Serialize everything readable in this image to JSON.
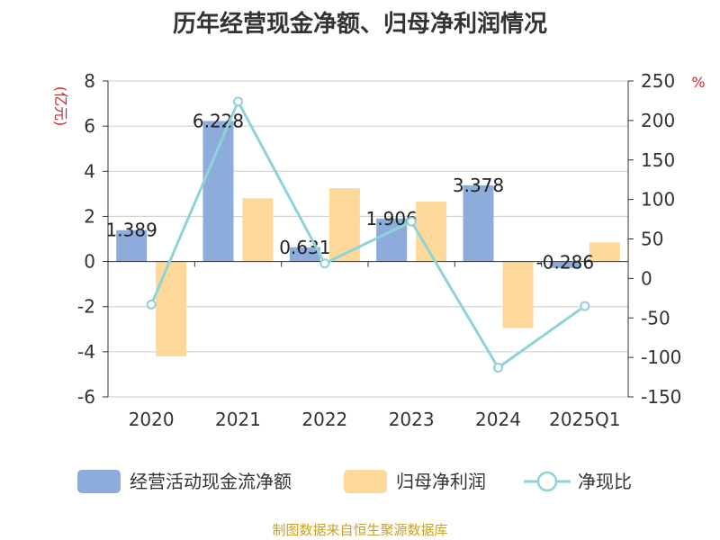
{
  "title": "历年经营现金净额、归母净利润情况",
  "source": "制图数据来自恒生聚源数据库",
  "chart_data": {
    "type": "bar+line",
    "categories": [
      "2020",
      "2021",
      "2022",
      "2023",
      "2024",
      "2025Q1"
    ],
    "left_axis": {
      "unit": "(亿元)",
      "min": -6,
      "max": 8,
      "ticks": [
        -6,
        -4,
        -2,
        0,
        2,
        4,
        6,
        8
      ]
    },
    "right_axis": {
      "unit": "%",
      "min": -150,
      "max": 250,
      "ticks": [
        -150,
        -100,
        -50,
        0,
        50,
        100,
        150,
        200,
        250
      ]
    },
    "series": [
      {
        "name": "经营活动现金流净额",
        "type": "bar",
        "axis": "left",
        "color": "#8eacdb",
        "values": [
          1.389,
          6.228,
          0.631,
          1.906,
          3.378,
          -0.286
        ],
        "labels": [
          "1.389",
          "6.228",
          "0.631",
          "1.906",
          "3.378",
          "-0.286"
        ]
      },
      {
        "name": "归母净利润",
        "type": "bar",
        "axis": "left",
        "color": "#fdd899",
        "values": [
          -4.2,
          2.8,
          3.25,
          2.65,
          -2.95,
          0.85
        ]
      },
      {
        "name": "净现比",
        "type": "line",
        "axis": "right",
        "color": "#8dd3d8",
        "values": [
          -33,
          224,
          19,
          72,
          -113,
          -35
        ]
      }
    ]
  }
}
